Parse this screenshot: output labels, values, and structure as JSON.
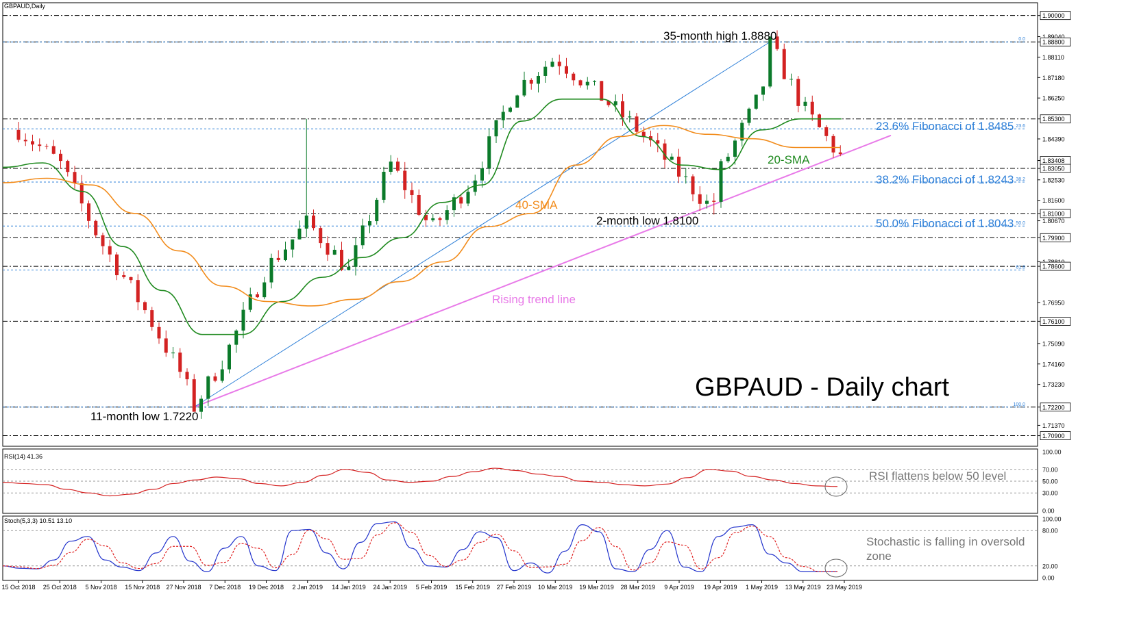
{
  "colors": {
    "bull": "#0b7a2a",
    "bear": "#d32222",
    "sma20": "#1f8a1f",
    "sma40": "#f28c1c",
    "fib": "#2f80d8",
    "trend": "#e87ae8",
    "rsi": "#d42020",
    "stoch_main": "#2233cc",
    "stoch_signal": "#e02020",
    "grid": "#000000"
  },
  "chart_data": {
    "type": "candlestick",
    "symbol_label": "GBPAUD,Daily",
    "title": "GBPAUD - Daily chart",
    "ylim": [
      1.7045,
      1.9055
    ],
    "y_ticks": [
      "1.90000",
      "1.89040",
      "1.88800",
      "1.88110",
      "1.87180",
      "1.86250",
      "1.85300",
      "1.84390",
      "1.83408",
      "1.83050",
      "1.82530",
      "1.81600",
      "1.81000",
      "1.80670",
      "1.79900",
      "1.78810",
      "1.78600",
      "1.76950",
      "1.76100",
      "1.75090",
      "1.74160",
      "1.73230",
      "1.72200",
      "1.71370",
      "1.70900"
    ],
    "x_labels": [
      "15 Oct 2018",
      "25 Oct 2018",
      "5 Nov 2018",
      "15 Nov 2018",
      "27 Nov 2018",
      "7 Dec 2018",
      "19 Dec 2018",
      "2 Jan 2019",
      "14 Jan 2019",
      "24 Jan 2019",
      "5 Feb 2019",
      "15 Feb 2019",
      "27 Feb 2019",
      "10 Mar 2019",
      "19 Mar 2019",
      "28 Mar 2019",
      "9 Apr 2019",
      "19 Apr 2019",
      "1 May 2019",
      "13 May 2019",
      "23 May 2019"
    ],
    "horizontal_levels": [
      1.9,
      1.888,
      1.853,
      1.8305,
      1.81,
      1.799,
      1.786,
      1.761,
      1.722,
      1.709
    ],
    "fib_levels": [
      {
        "value": 1.888,
        "tag": "0.0"
      },
      {
        "value": 1.8485,
        "tag": "23.6",
        "label": "23.6% Fibonacci of 1.8485"
      },
      {
        "value": 1.8243,
        "tag": "38.2",
        "label": "38.2% Fibonacci of 1.8243"
      },
      {
        "value": 1.8043,
        "tag": "50.0",
        "label": "50.0% Fibonacci of 1.8043"
      },
      {
        "value": 1.7843,
        "tag": "61.8"
      },
      {
        "value": 1.722,
        "tag": "100.0"
      }
    ],
    "highlight_prices": [
      "1.85300",
      "1.83408"
    ],
    "candle_anchors": [
      {
        "d": "15 Oct 2018",
        "c": 1.848
      },
      {
        "d": "25 Oct 2018",
        "c": 1.833
      },
      {
        "d": "5 Nov 2018",
        "c": 1.797
      },
      {
        "d": "15 Nov 2018",
        "c": 1.768
      },
      {
        "d": "27 Nov 2018",
        "c": 1.735
      },
      {
        "d": "29 Nov 2018",
        "c": 1.722
      },
      {
        "d": "7 Dec 2018",
        "c": 1.745
      },
      {
        "d": "19 Dec 2018",
        "c": 1.785
      },
      {
        "d": "2 Jan 2019",
        "c": 1.806
      },
      {
        "d": "14 Jan 2019",
        "c": 1.784
      },
      {
        "d": "24 Jan 2019",
        "c": 1.833
      },
      {
        "d": "5 Feb 2019",
        "c": 1.803
      },
      {
        "d": "15 Feb 2019",
        "c": 1.825
      },
      {
        "d": "27 Feb 2019",
        "c": 1.866
      },
      {
        "d": "10 Mar 2019",
        "c": 1.881
      },
      {
        "d": "19 Mar 2019",
        "c": 1.865
      },
      {
        "d": "28 Mar 2019",
        "c": 1.848
      },
      {
        "d": "9 Apr 2019",
        "c": 1.828
      },
      {
        "d": "17 Apr 2019",
        "c": 1.812
      },
      {
        "d": "19 Apr 2019",
        "c": 1.83
      },
      {
        "d": "1 May 2019",
        "c": 1.865
      },
      {
        "d": "3 May 2019",
        "c": 1.887
      },
      {
        "d": "13 May 2019",
        "c": 1.858
      },
      {
        "d": "23 May 2019",
        "c": 1.8335
      }
    ],
    "sma20_anchors": [
      1.831,
      1.833,
      1.82,
      1.795,
      1.775,
      1.755,
      1.755,
      1.77,
      1.781,
      1.79,
      1.799,
      1.815,
      1.823,
      1.852,
      1.862,
      1.862,
      1.845,
      1.832,
      1.83,
      1.848,
      1.853,
      1.853
    ],
    "sma40_anchors": [
      1.824,
      1.826,
      1.823,
      1.81,
      1.793,
      1.777,
      1.77,
      1.768,
      1.771,
      1.779,
      1.788,
      1.804,
      1.81,
      1.832,
      1.845,
      1.85,
      1.846,
      1.844,
      1.84,
      1.84
    ],
    "rising_trend_line": {
      "from": {
        "d": "29 Nov 2018",
        "v": 1.722
      },
      "to": {
        "d": "23 May 2019",
        "v": 1.8335
      }
    },
    "blue_trend_line": {
      "from": {
        "d": "29 Nov 2018",
        "v": 1.722
      },
      "to": {
        "d": "3 May 2019",
        "v": 1.888
      }
    },
    "annotations": [
      {
        "text": "35-month high 1.8880",
        "color": "#000000"
      },
      {
        "text": "2-month low 1.8100",
        "color": "#000000"
      },
      {
        "text": "11-month low 1.7220",
        "color": "#000000"
      },
      {
        "text": "20-SMA",
        "color": "#1f8a1f"
      },
      {
        "text": "40-SMA",
        "color": "#f28c1c"
      },
      {
        "text": "Rising trend line",
        "color": "#e87ae8"
      }
    ],
    "rsi": {
      "label": "RSI(14) 41.36",
      "ylim": [
        0,
        100
      ],
      "ticks": [
        "100.00",
        "70.00",
        "50.00",
        "30.00",
        "0.00"
      ],
      "note": "RSI flattens below 50 level",
      "values": [
        48,
        46,
        44,
        36,
        30,
        25,
        28,
        36,
        46,
        52,
        57,
        54,
        46,
        42,
        48,
        60,
        70,
        65,
        52,
        48,
        50,
        58,
        66,
        72,
        68,
        62,
        58,
        50,
        48,
        44,
        42,
        45,
        56,
        70,
        67,
        58,
        52,
        46,
        42,
        41
      ]
    },
    "stoch": {
      "label": "Stoch(5,3,3) 10.51 13.10",
      "ylim": [
        0,
        100
      ],
      "ticks": [
        "100.00",
        "80.00",
        "20.00",
        "0.00"
      ],
      "note_line1": "Stochastic is falling in oversold",
      "note_line2": "zone",
      "main": [
        20,
        16,
        15,
        30,
        62,
        70,
        30,
        18,
        12,
        42,
        70,
        28,
        10,
        50,
        70,
        20,
        12,
        80,
        82,
        42,
        15,
        60,
        92,
        95,
        50,
        20,
        18,
        48,
        78,
        68,
        12,
        25,
        8,
        45,
        90,
        78,
        15,
        10,
        48,
        80,
        18,
        10,
        70,
        86,
        90,
        40,
        25,
        10,
        10,
        10
      ],
      "signal_lag": 1
    }
  }
}
